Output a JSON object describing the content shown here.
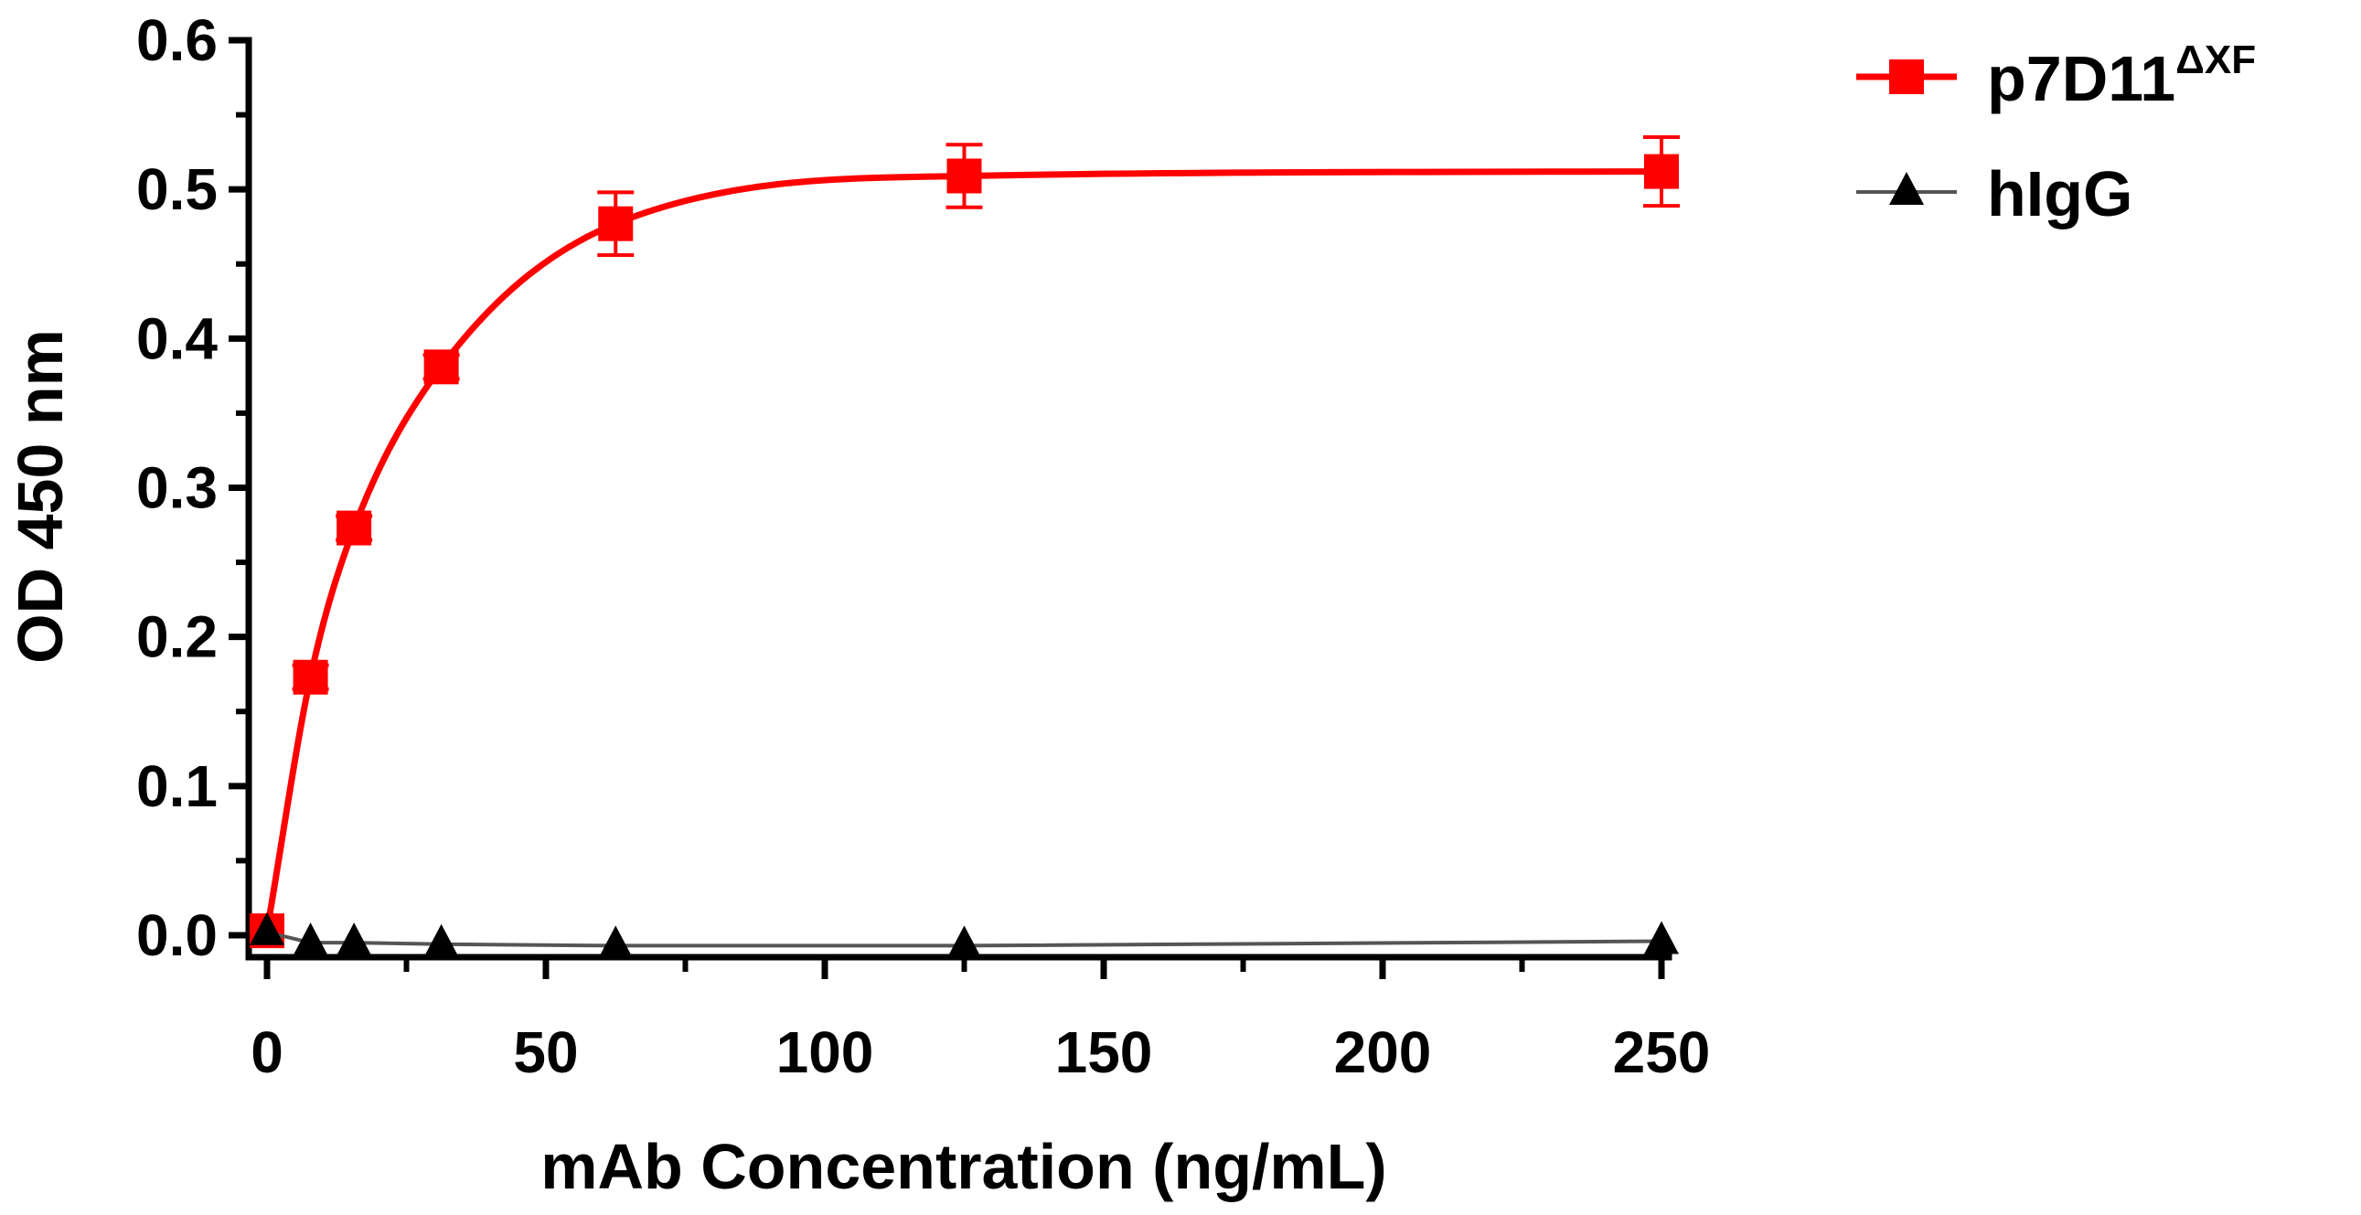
{
  "chart_data": {
    "type": "line",
    "title": "",
    "xlabel": "mAb Concentration (ng/mL)",
    "ylabel": "OD 450 nm",
    "xlim": [
      0,
      250
    ],
    "ylim": [
      0,
      0.6
    ],
    "x_ticks": [
      0,
      50,
      100,
      150,
      200,
      250
    ],
    "x_tick_labels": [
      "0",
      "50",
      "100",
      "150",
      "200",
      "250"
    ],
    "y_ticks": [
      0,
      0.1,
      0.2,
      0.3,
      0.4,
      0.5,
      0.6
    ],
    "y_tick_labels": [
      "0.0",
      "0.1",
      "0.2",
      "0.3",
      "0.4",
      "0.5",
      "0.6"
    ],
    "grid": false,
    "legend_position": "top-right",
    "series": [
      {
        "name": "p7D11",
        "name_sup": "ΔXF",
        "color": "#ff0000",
        "marker": "square",
        "x": [
          0,
          7.8,
          15.6,
          31.25,
          62.5,
          125,
          250
        ],
        "y": [
          0.003,
          0.173,
          0.273,
          0.381,
          0.477,
          0.509,
          0.512
        ],
        "error": [
          0.003,
          0.008,
          0.008,
          0.008,
          0.021,
          0.021,
          0.023
        ],
        "fit": "smooth"
      },
      {
        "name": "hIgG",
        "name_sup": "",
        "color": "#000000",
        "line_color": "#555555",
        "marker": "triangle",
        "x": [
          0,
          7.8,
          15.6,
          31.25,
          62.5,
          125,
          250
        ],
        "y": [
          0.002,
          -0.005,
          -0.005,
          -0.006,
          -0.007,
          -0.007,
          -0.004
        ],
        "error": [
          0,
          0,
          0,
          0,
          0,
          0,
          0
        ],
        "fit": "line"
      }
    ]
  }
}
